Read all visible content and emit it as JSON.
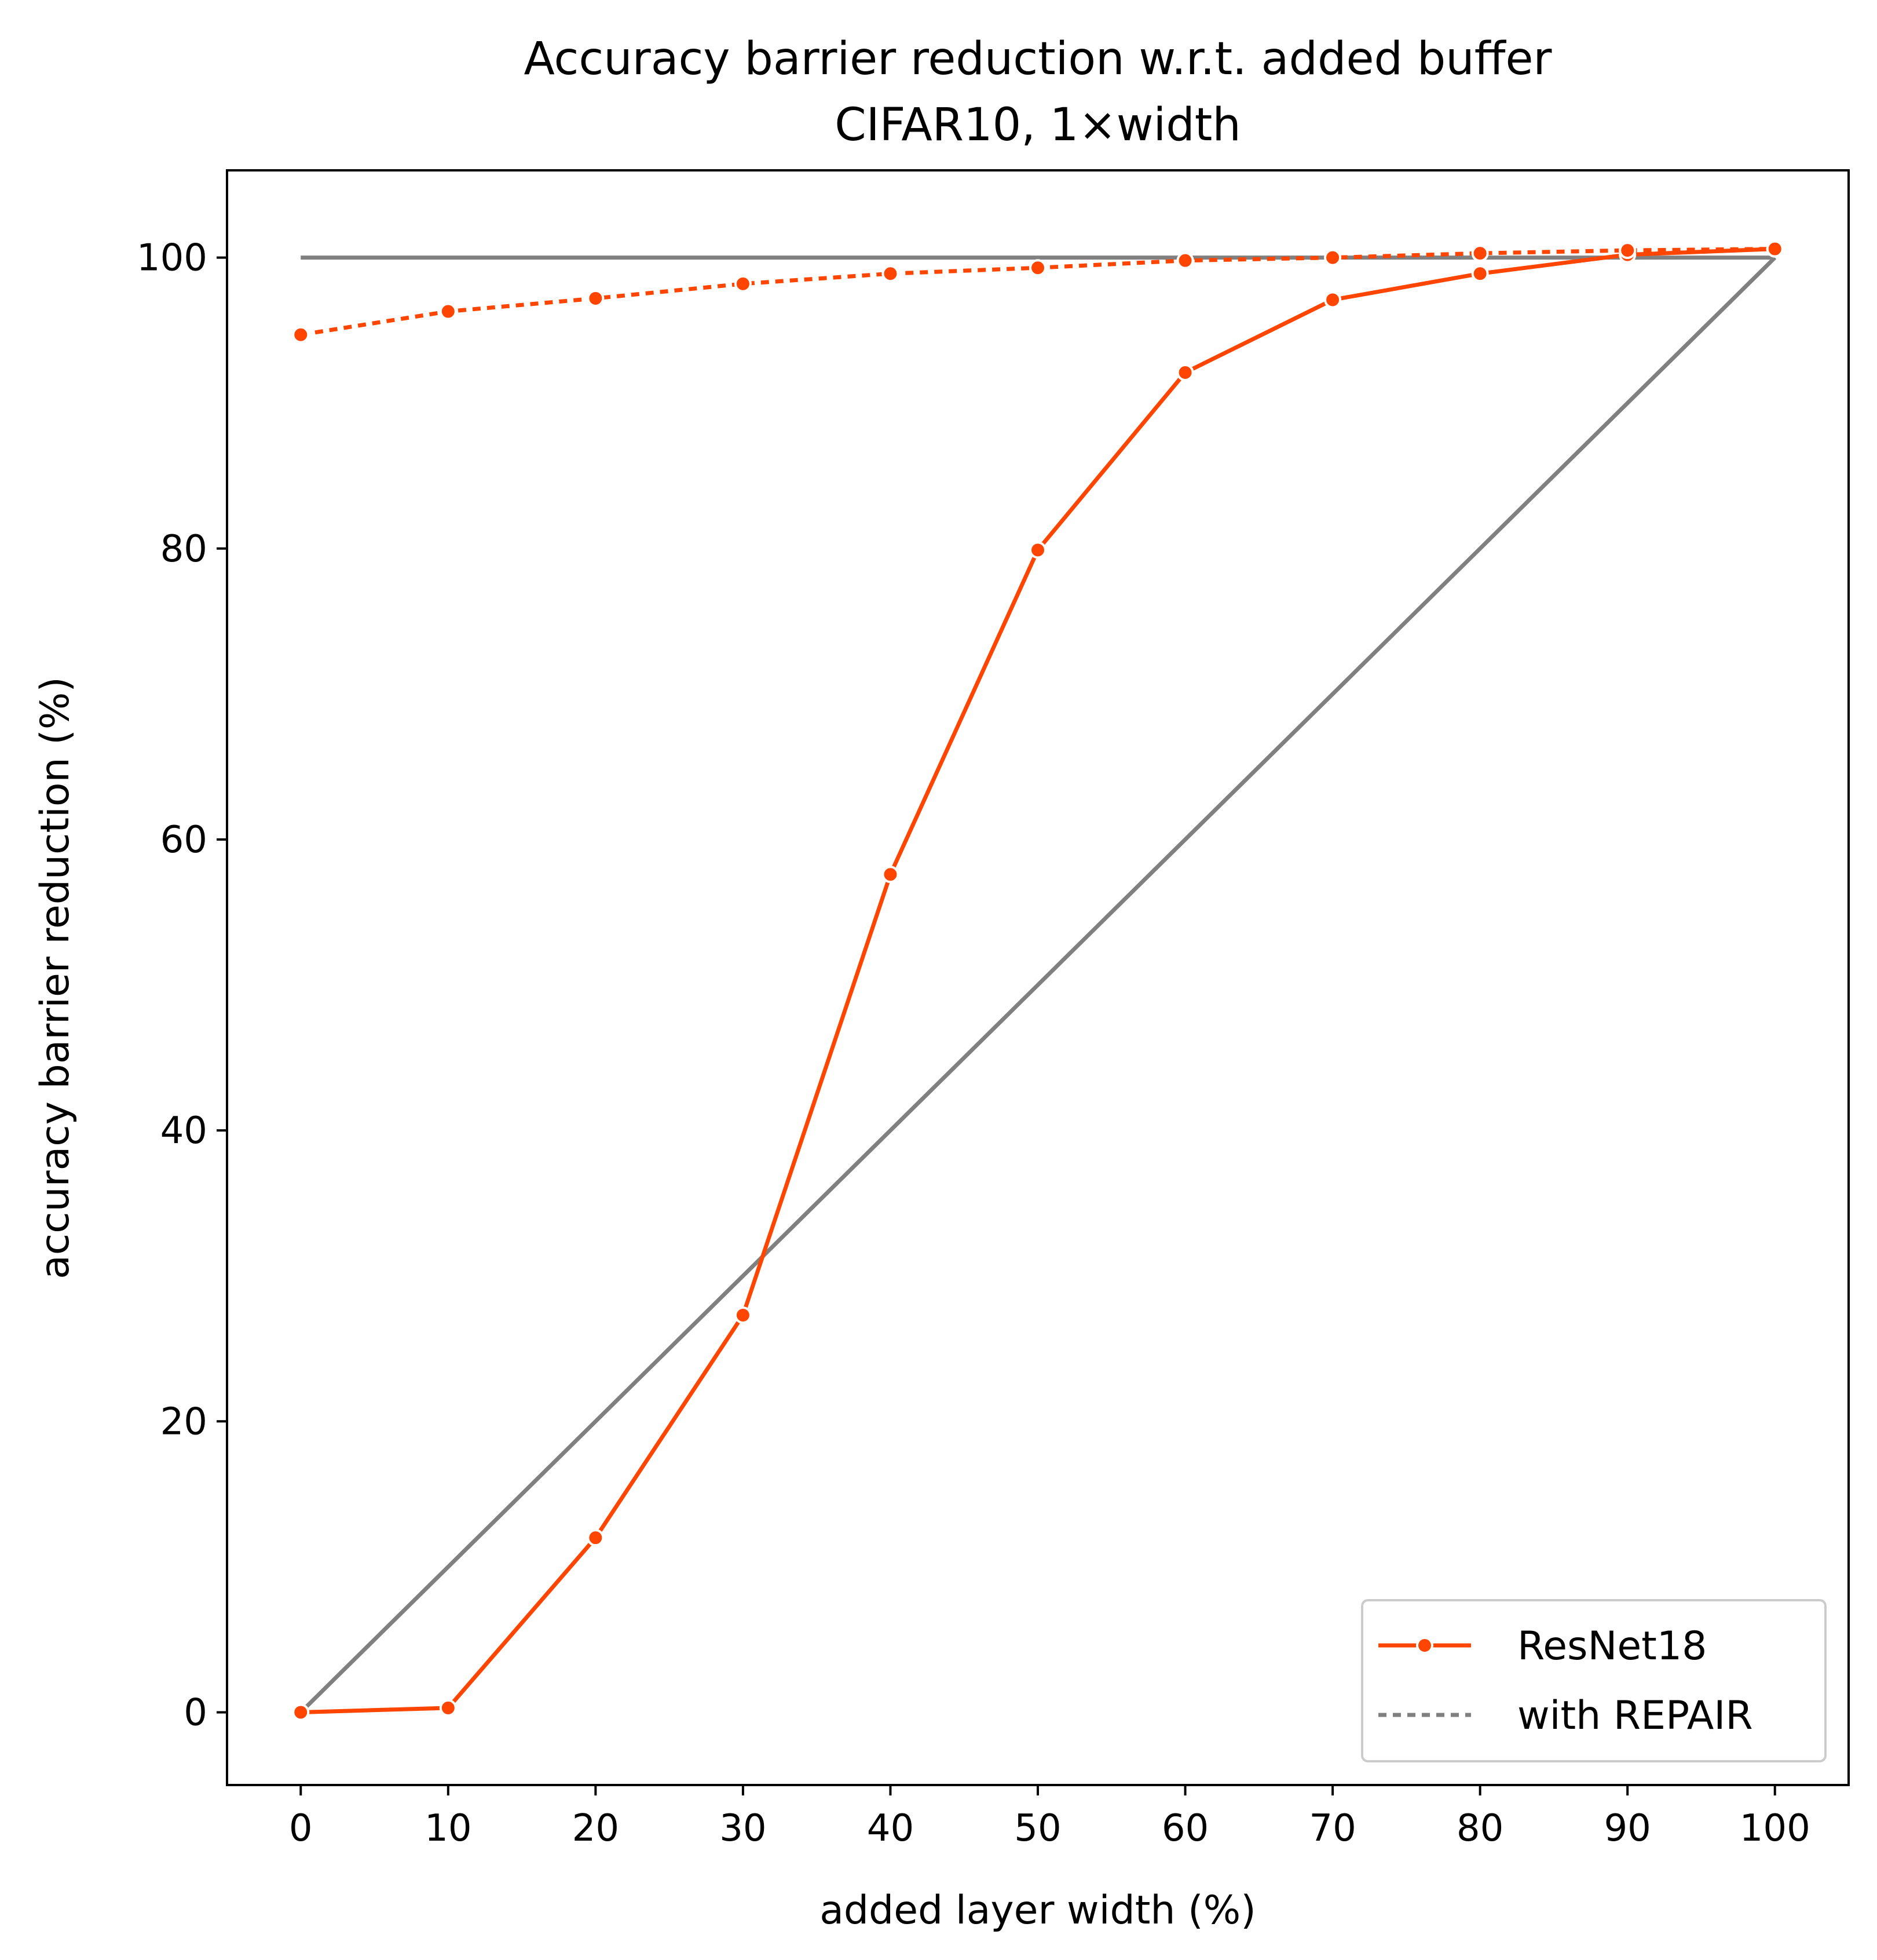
{
  "chart_data": {
    "type": "line",
    "title": "Accuracy barrier reduction w.r.t. added buffer",
    "subtitle": "CIFAR10, 1×width",
    "xlabel": "added layer width (%)",
    "ylabel": "accuracy barrier reduction (%)",
    "xlim": [
      -5,
      105
    ],
    "ylim": [
      -5,
      106
    ],
    "xticks": [
      0,
      10,
      20,
      30,
      40,
      50,
      60,
      70,
      80,
      90,
      100
    ],
    "yticks": [
      0,
      20,
      40,
      60,
      80,
      100
    ],
    "grid": false,
    "legend_position": "lower-right",
    "series": [
      {
        "name": "ResNet18",
        "style": "solid",
        "markers": true,
        "color": "#ff4500",
        "x": [
          0,
          10,
          20,
          30,
          40,
          50,
          60,
          70,
          80,
          90,
          100
        ],
        "y": [
          0.0,
          0.3,
          12.0,
          27.3,
          57.6,
          79.9,
          92.1,
          97.1,
          98.9,
          100.2,
          100.6
        ]
      },
      {
        "style": "dotted",
        "markers": true,
        "color": "#ff4500",
        "x": [
          0,
          10,
          20,
          30,
          40,
          50,
          60,
          70,
          80,
          90,
          100
        ],
        "y": [
          94.7,
          96.3,
          97.2,
          98.2,
          98.9,
          99.3,
          99.8,
          100.0,
          100.3,
          100.5,
          100.6
        ]
      },
      {
        "style": "solid",
        "markers": false,
        "color": "#808080",
        "x": [
          0,
          100
        ],
        "y": [
          100,
          100
        ]
      },
      {
        "style": "solid",
        "markers": false,
        "color": "#808080",
        "x": [
          0,
          100
        ],
        "y": [
          0,
          100
        ]
      }
    ],
    "legend": [
      {
        "label": "ResNet18",
        "style": "solid-marker",
        "color": "#ff4500"
      },
      {
        "label": "with REPAIR",
        "style": "dotted",
        "color": "#808080"
      }
    ]
  }
}
